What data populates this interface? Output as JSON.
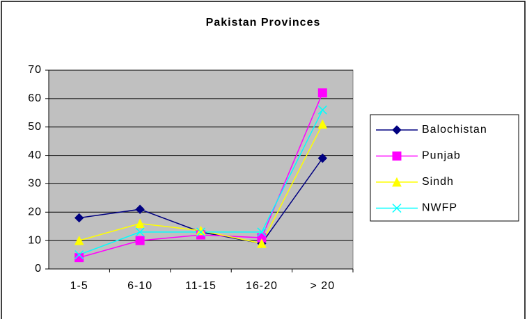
{
  "chart_data": {
    "type": "line",
    "title": "Pakistan Provinces",
    "categories": [
      "1-5",
      "6-10",
      "11-15",
      "16-20",
      "> 20"
    ],
    "series": [
      {
        "name": "Balochistan",
        "color": "#000080",
        "marker": "diamond",
        "values": [
          18,
          21,
          13,
          9,
          39
        ]
      },
      {
        "name": "Punjab",
        "color": "#ff00ff",
        "marker": "square",
        "values": [
          4,
          10,
          12,
          11,
          62
        ]
      },
      {
        "name": "Sindh",
        "color": "#ffff00",
        "marker": "triangle",
        "values": [
          10,
          16,
          13.5,
          9,
          51
        ]
      },
      {
        "name": "NWFP",
        "color": "#00ffff",
        "marker": "x",
        "values": [
          5,
          13,
          13,
          13,
          56
        ]
      }
    ],
    "ylim": [
      0,
      70
    ],
    "yticks": [
      0,
      10,
      20,
      30,
      40,
      50,
      60,
      70
    ],
    "grid": true,
    "legend": "right"
  }
}
